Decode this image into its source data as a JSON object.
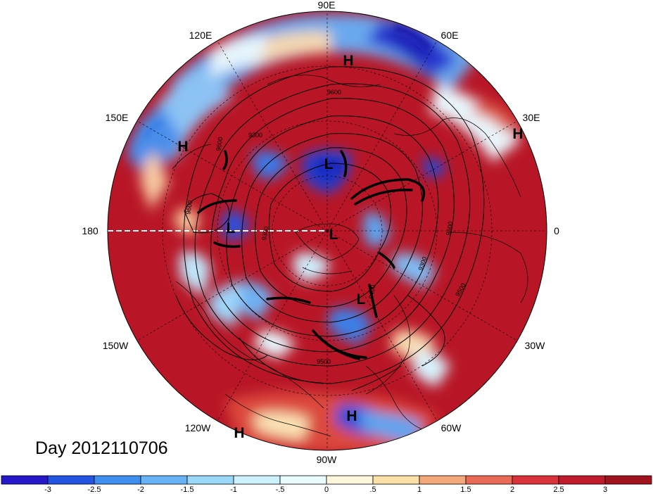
{
  "date_label": "Day 2012110706",
  "longitude_labels": {
    "n90e": "90E",
    "n60e": "60E",
    "n30e": "30E",
    "zero": "0",
    "n30w": "30W",
    "n60w": "60W",
    "n90w": "90W",
    "n120w": "120W",
    "n150w": "150W",
    "n180": "180",
    "n150e": "150E",
    "n120e": "120E"
  },
  "pressure_centers": [
    {
      "type": "H",
      "label": "H"
    },
    {
      "type": "H",
      "label": "H"
    },
    {
      "type": "H",
      "label": "H"
    },
    {
      "type": "H",
      "label": "H"
    },
    {
      "type": "H",
      "label": "H"
    },
    {
      "type": "L",
      "label": "L"
    },
    {
      "type": "L",
      "label": "L"
    },
    {
      "type": "L",
      "label": "L"
    },
    {
      "type": "L",
      "label": "L"
    }
  ],
  "contour_labels": [
    "9600",
    "9300",
    "9600",
    "9600",
    "9300",
    "9400",
    "9500",
    "9600",
    "9300",
    "9500"
  ],
  "colorbar": {
    "ticks": [
      "-3",
      "-2.5",
      "-2",
      "-1.5",
      "-1",
      "-.5",
      "0",
      ".5",
      "1",
      "1.5",
      "2",
      "2.5",
      "3"
    ],
    "colors": [
      "#2617c8",
      "#2355e2",
      "#3f8ff0",
      "#68b3f6",
      "#9ad8fa",
      "#cdf1fd",
      "#eafbff",
      "#fff7db",
      "#fbe0a8",
      "#f3a77a",
      "#ea6a55",
      "#d9323a",
      "#bf1b2a",
      "#a1121f"
    ]
  }
}
